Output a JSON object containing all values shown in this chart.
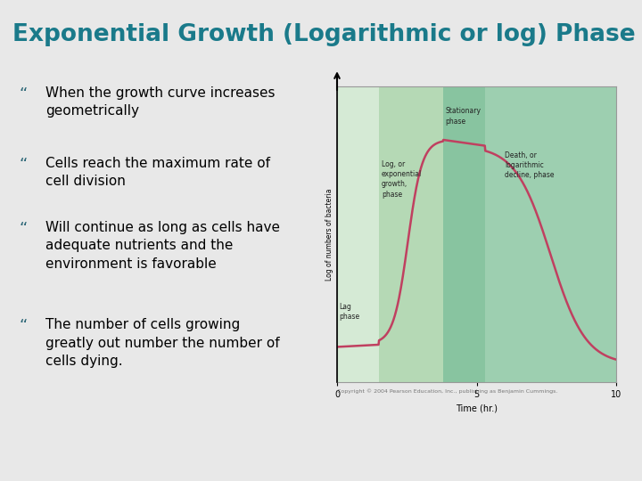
{
  "title": "Exponential Growth (Logarithmic or log) Phase",
  "title_color": "#1a7a8a",
  "title_fontsize": 19,
  "slide_bg": "#e8e8e8",
  "content_bg": "#f0f0f0",
  "bullet_color": "#2a6575",
  "bullet_fontsize": 11,
  "bullets": [
    "When the growth curve increases\ngeometrically",
    "Cells reach the maximum rate of\ncell division",
    "Will continue as long as cells have\nadequate nutrients and the\nenvironment is favorable",
    "The number of cells growing\ngreatly out number the number of\ncells dying."
  ],
  "phase_colors": {
    "lag": "#d5ead5",
    "log": "#b5d9b5",
    "stationary": "#88c4a0",
    "death": "#9dcfb0"
  },
  "curve_color": "#c04060",
  "xlabel": "Time (hr.)",
  "ylabel": "Log of numbers of bacteria",
  "xticks": [
    0,
    5,
    10
  ],
  "phase_labels": {
    "lag": "Lag\nphase",
    "log": "Log, or\nexponential\ngrowth,\nphase",
    "stationary": "Stationary\nphase",
    "death": "Death, or\nlogarithmic\ndecline, phase"
  },
  "phase_boundaries": [
    0,
    1.5,
    3.8,
    5.3,
    10
  ],
  "bottom_bar_color": "#1a80c8",
  "copyright": "Copyright © 2004 Pearson Education, Inc., publishing as Benjamin Cummings."
}
